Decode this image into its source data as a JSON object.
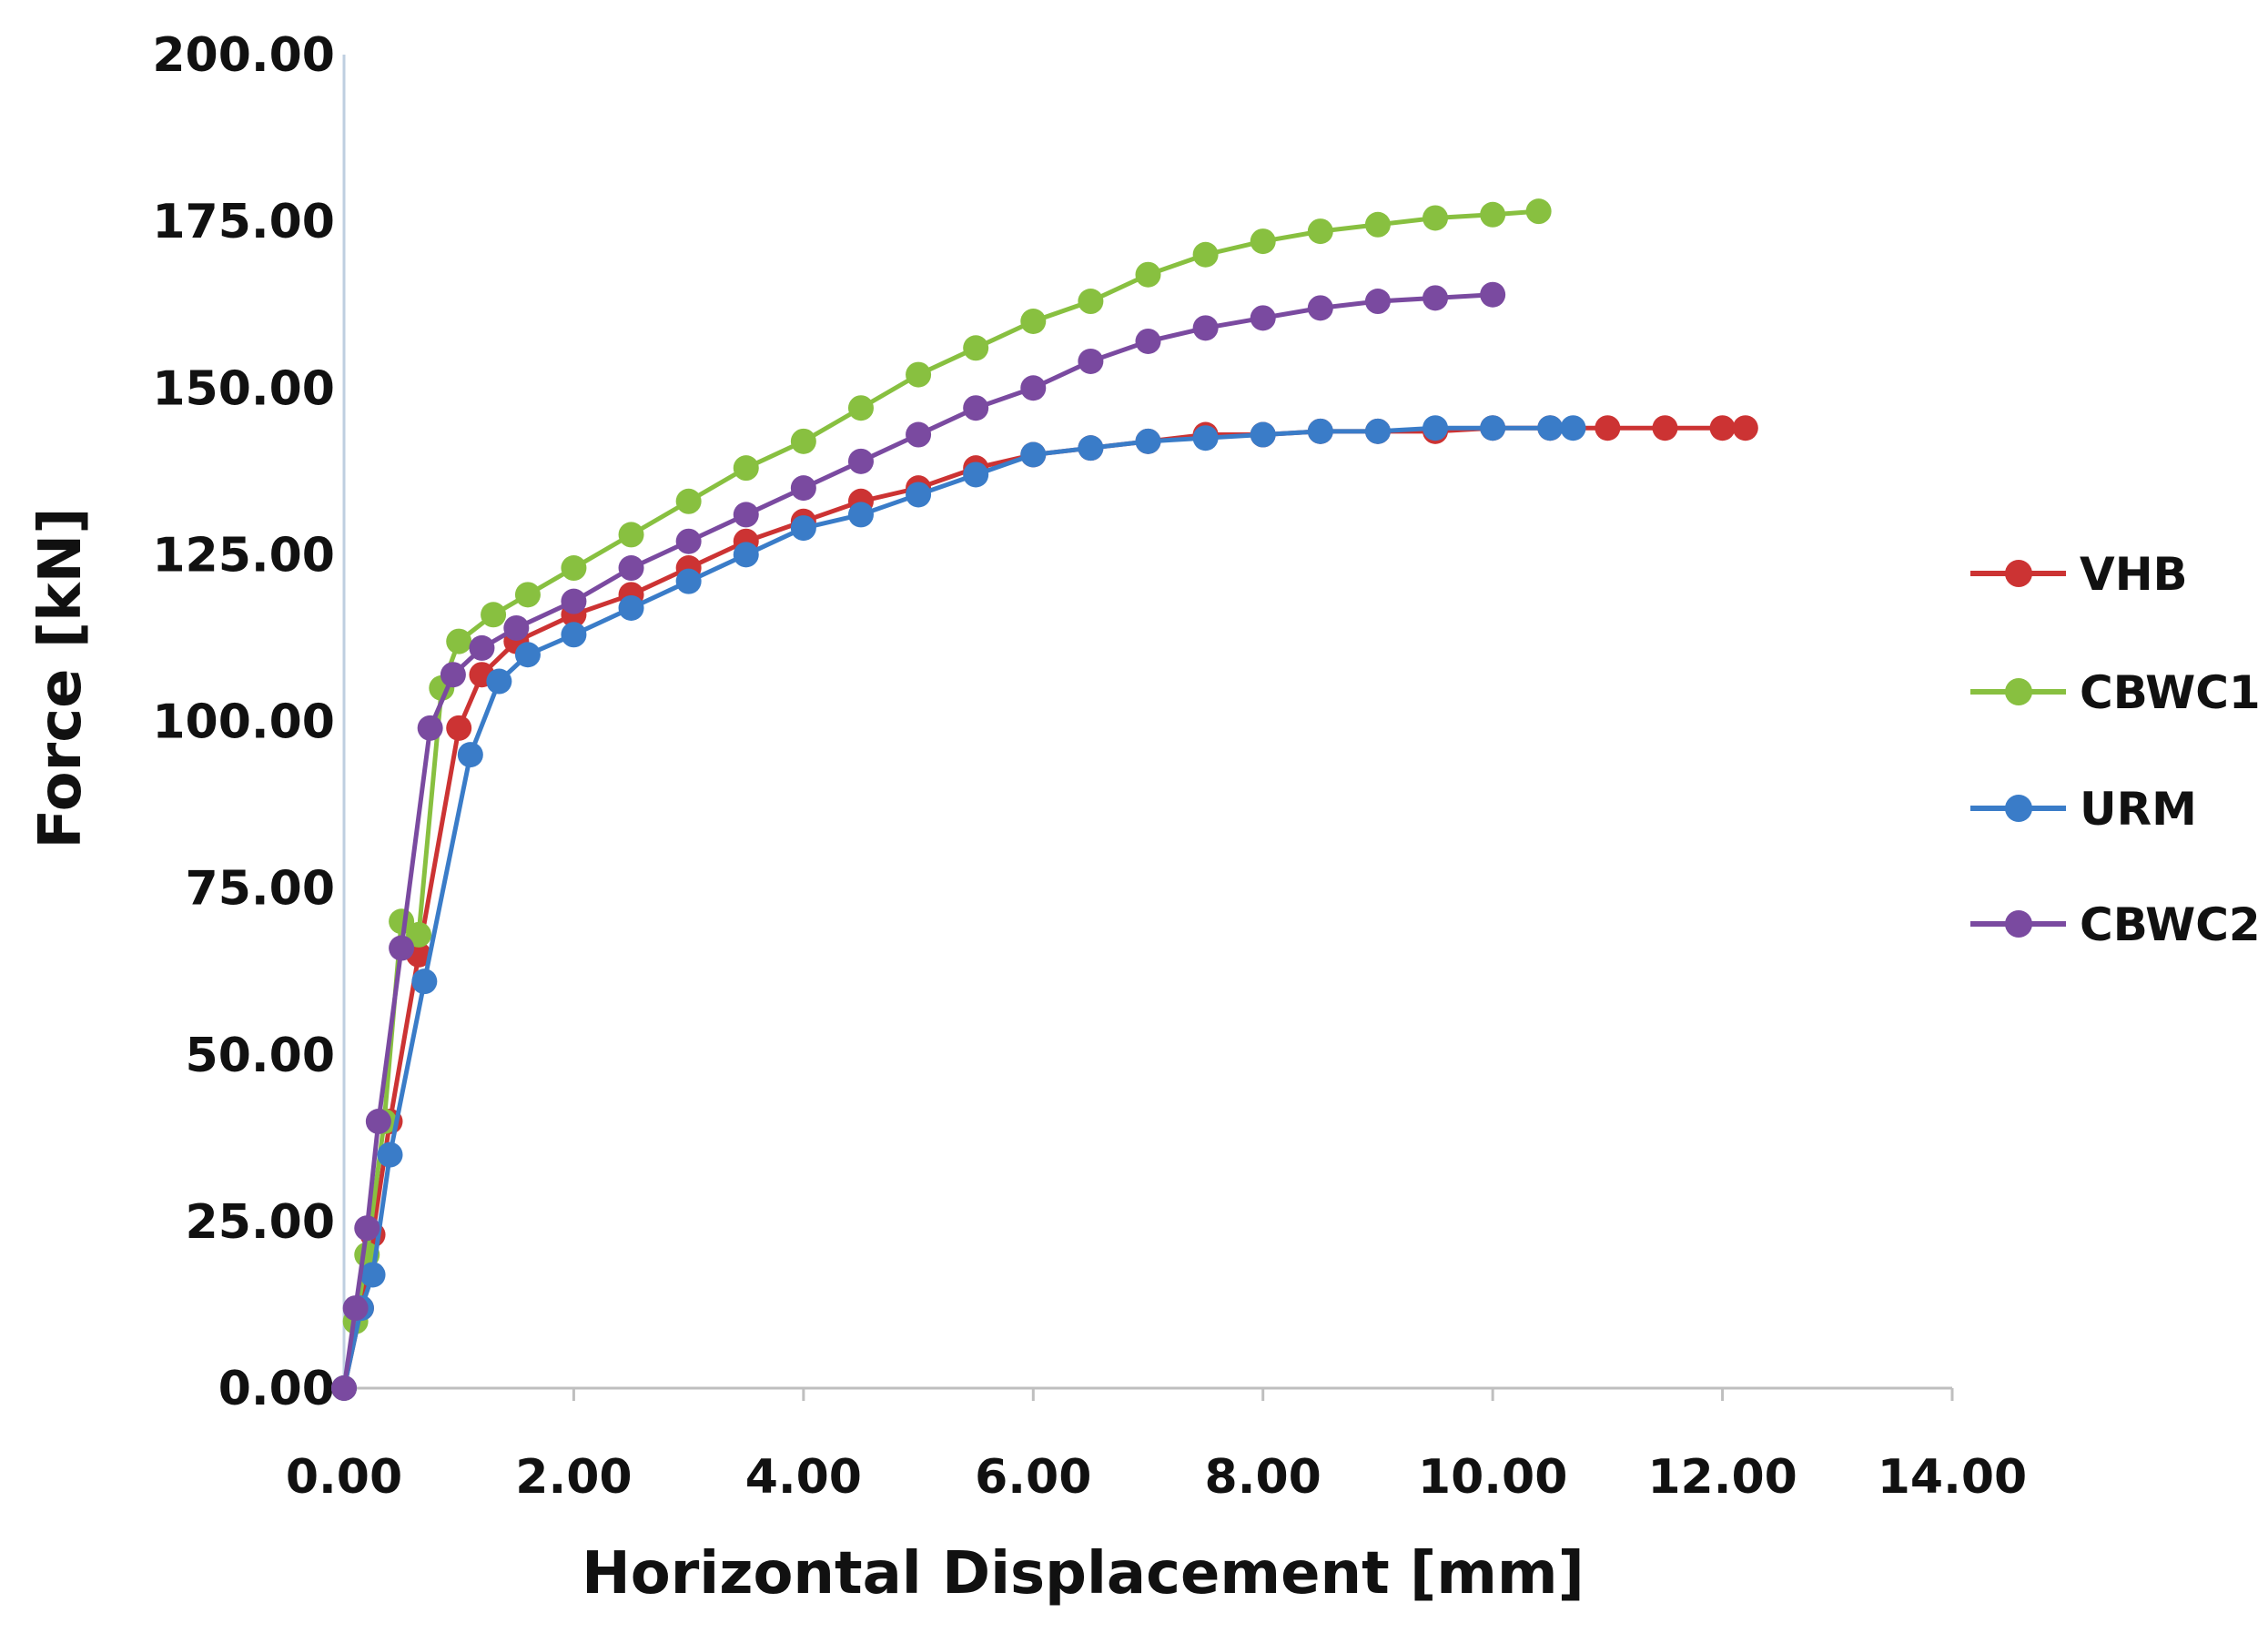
{
  "chart_data": {
    "type": "line",
    "title": "",
    "xlabel": "Horizontal Displacement [mm]",
    "ylabel": "Force [kN]",
    "xlim": [
      0,
      14
    ],
    "ylim": [
      0,
      200
    ],
    "xticks": [
      0,
      2,
      4,
      6,
      8,
      10,
      12,
      14
    ],
    "yticks": [
      0,
      25,
      50,
      75,
      100,
      125,
      150,
      175,
      200
    ],
    "xtick_labels": [
      "0.00",
      "2.00",
      "4.00",
      "6.00",
      "8.00",
      "10.00",
      "12.00",
      "14.00"
    ],
    "ytick_labels": [
      "0.00",
      "25.00",
      "50.00",
      "75.00",
      "100.00",
      "125.00",
      "150.00",
      "175.00",
      "200.00"
    ],
    "grid": false,
    "legend_position": "right",
    "series": [
      {
        "name": "VHB",
        "color": "#cc3333",
        "x": [
          0,
          0.15,
          0.25,
          0.4,
          0.65,
          1.0,
          1.2,
          1.5,
          2.0,
          2.5,
          3.0,
          3.5,
          4.0,
          4.5,
          5.0,
          5.5,
          6.0,
          6.5,
          7.0,
          7.5,
          8.0,
          8.5,
          9.0,
          9.5,
          10.0,
          10.5,
          11.0,
          11.5,
          12.0,
          12.2
        ],
        "y": [
          0,
          12,
          23,
          40,
          65,
          99,
          107,
          112,
          116,
          119,
          123,
          127,
          130,
          133,
          135,
          138,
          140,
          141,
          142,
          143,
          143,
          143.5,
          143.5,
          143.5,
          144,
          144,
          144,
          144,
          144,
          144
        ]
      },
      {
        "name": "CBWC1",
        "color": "#88c040",
        "x": [
          0,
          0.1,
          0.2,
          0.35,
          0.5,
          0.65,
          0.85,
          1.0,
          1.3,
          1.6,
          2.0,
          2.5,
          3.0,
          3.5,
          4.0,
          4.5,
          5.0,
          5.5,
          6.0,
          6.5,
          7.0,
          7.5,
          8.0,
          8.5,
          9.0,
          9.5,
          10.0,
          10.4
        ],
        "y": [
          0,
          10,
          20,
          40,
          70,
          68,
          105,
          112,
          116,
          119,
          123,
          128,
          133,
          138,
          142,
          147,
          152,
          156,
          160,
          163,
          167,
          170,
          172,
          173.5,
          174.5,
          175.5,
          176,
          176.5
        ]
      },
      {
        "name": "URM",
        "color": "#3a7cc8",
        "x": [
          0,
          0.15,
          0.25,
          0.4,
          0.7,
          1.1,
          1.35,
          1.6,
          2.0,
          2.5,
          3.0,
          3.5,
          4.0,
          4.5,
          5.0,
          5.5,
          6.0,
          6.5,
          7.0,
          7.5,
          8.0,
          8.5,
          9.0,
          9.5,
          10.0,
          10.5,
          10.7
        ],
        "y": [
          0,
          12,
          17,
          35,
          61,
          95,
          106,
          110,
          113,
          117,
          121,
          125,
          129,
          131,
          134,
          137,
          140,
          141,
          142,
          142.5,
          143,
          143.5,
          143.5,
          144,
          144,
          144,
          144
        ]
      },
      {
        "name": "CBWC2",
        "color": "#7a4aa0",
        "x": [
          0,
          0.1,
          0.2,
          0.3,
          0.5,
          0.75,
          0.95,
          1.2,
          1.5,
          2.0,
          2.5,
          3.0,
          3.5,
          4.0,
          4.5,
          5.0,
          5.5,
          6.0,
          6.5,
          7.0,
          7.5,
          8.0,
          8.5,
          9.0,
          9.5,
          10.0
        ],
        "y": [
          0,
          12,
          24,
          40,
          66,
          99,
          107,
          111,
          114,
          118,
          123,
          127,
          131,
          135,
          139,
          143,
          147,
          150,
          154,
          157,
          159,
          160.5,
          162,
          163,
          163.5,
          164
        ]
      }
    ]
  }
}
